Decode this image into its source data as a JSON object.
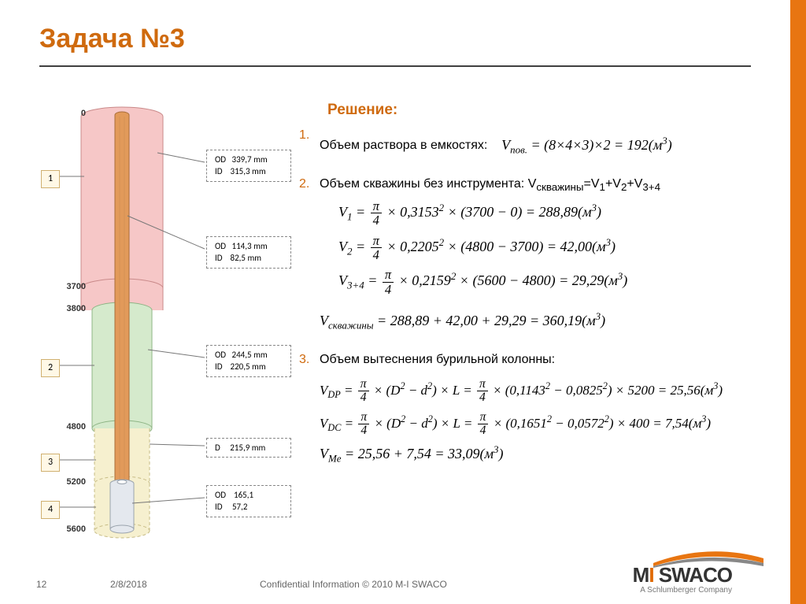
{
  "title": "Задача №3",
  "section_title": "Решение:",
  "page_number": "12",
  "date": "2/8/2018",
  "confidential": "Confidential Information  © 2010 M-I SWACO",
  "company_tagline": "A Schlumberger Company",
  "colors": {
    "accent": "#cf6a0e",
    "stripe": "#e87511",
    "seg1_fill": "#f6c7c7",
    "seg1_stroke": "#c98989",
    "seg2_fill": "#d5eacc",
    "seg2_stroke": "#8fb586",
    "seg3_fill": "#f6f0cf",
    "seg3_stroke": "#c7bc86",
    "pipe_fill": "#e29a5a",
    "pipe_stroke": "#a86d3a",
    "dc_fill": "#e4e8ee",
    "dc_stroke": "#9aa3ad"
  },
  "diagram": {
    "depths": [
      "0",
      "3700",
      "3800",
      "4800",
      "5200",
      "5600"
    ],
    "num_boxes": [
      "1",
      "2",
      "3",
      "4"
    ],
    "labels": {
      "casing1": {
        "od_l": "OD",
        "od_v": "339,7 mm",
        "id_l": "ID",
        "id_v": "315,3 mm"
      },
      "dp": {
        "od_l": "OD",
        "od_v": "114,3 mm",
        "id_l": "ID",
        "id_v": "82,5 mm"
      },
      "casing2": {
        "od_l": "OD",
        "od_v": "244,5 mm",
        "id_l": "ID",
        "id_v": "220,5 mm"
      },
      "bit": {
        "d_l": "D",
        "d_v": "215,9 mm"
      },
      "dc": {
        "od_l": "OD",
        "od_v": "165,1",
        "id_l": "ID",
        "id_v": "57,2"
      }
    }
  },
  "steps": {
    "s1": {
      "text": "Объем раствора в емкостях:",
      "eq": "V<sub class=sub>пов.</sub> = (8×4×3)×2 = 192(<span class=it>м</span><sup class=sup>3</sup>)"
    },
    "s2": {
      "text": "Объем скважины без инструмента: V<sub class=sub>скважины</sub>=V<sub class=sub>1</sub>+V<sub class=sub>2</sub>+V<sub class=sub>3+4</sub>",
      "eq1": "V<sub class=sub>1</sub> = <span class=frac><span class=fn>π</span><span class=fd>4</span></span> × 0,3153<sup class=sup>2</sup> × (3700 − 0) = 288,89(<span class=it>м</span><sup class=sup>3</sup>)",
      "eq2": "V<sub class=sub>2</sub> = <span class=frac><span class=fn>π</span><span class=fd>4</span></span> × 0,2205<sup class=sup>2</sup> × (4800 − 3700) = 42,00(<span class=it>м</span><sup class=sup>3</sup>)",
      "eq3": "V<sub class=sub>3+4</sub> = <span class=frac><span class=fn>π</span><span class=fd>4</span></span> × 0,2159<sup class=sup>2</sup> × (5600 − 4800) = 29,29(<span class=it>м</span><sup class=sup>3</sup>)",
      "eq4": "V<sub class=sub>скважины</sub> = 288,89 + 42,00 + 29,29 = 360,19(<span class=it>м</span><sup class=sup>3</sup>)"
    },
    "s3": {
      "text": "Объем вытеснения бурильной колонны:",
      "eq1": "V<sub class=sub>DP</sub> = <span class=frac><span class=fn>π</span><span class=fd>4</span></span> × (<span class=it>D</span><sup class=sup>2</sup> − <span class=it>d</span><sup class=sup>2</sup>) × <span class=it>L</span> = <span class=frac><span class=fn>π</span><span class=fd>4</span></span> × (0,1143<sup class=sup>2</sup> − 0,0825<sup class=sup>2</sup>) × 5200 = 25,56(<span class=it>м</span><sup class=sup>3</sup>)",
      "eq2": "V<sub class=sub>DC</sub> = <span class=frac><span class=fn>π</span><span class=fd>4</span></span> × (<span class=it>D</span><sup class=sup>2</sup> − <span class=it>d</span><sup class=sup>2</sup>) × <span class=it>L</span> = <span class=frac><span class=fn>π</span><span class=fd>4</span></span> × (0,1651<sup class=sup>2</sup> − 0,0572<sup class=sup>2</sup>) × 400 = 7,54(<span class=it>м</span><sup class=sup>3</sup>)",
      "eq3": "V<sub class=sub>Me</sub> = 25,56 + 7,54 = 33,09(<span class=it>м</span><sup class=sup>3</sup>)"
    }
  }
}
